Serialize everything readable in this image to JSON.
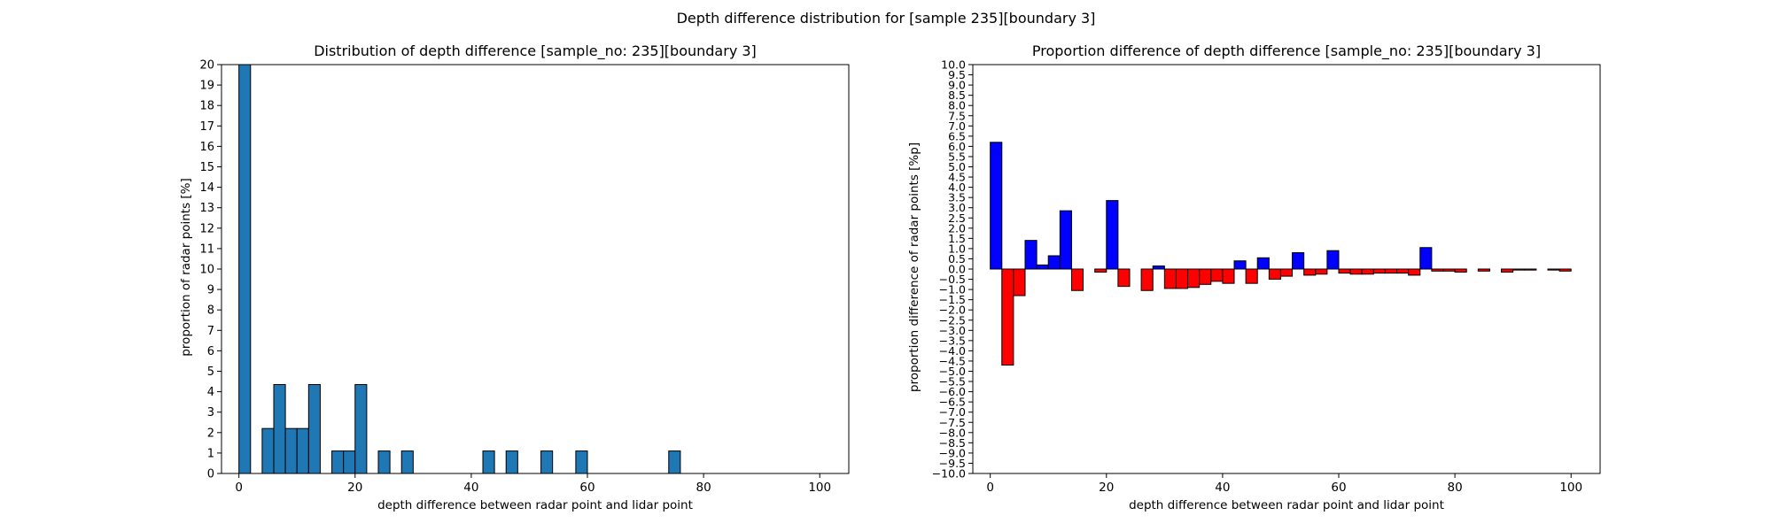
{
  "figure": {
    "suptitle": "Depth difference distribution for [sample 235][boundary 3]"
  },
  "chart_data": [
    {
      "type": "bar",
      "title": "Distribution of depth difference [sample_no: 235][boundary 3]",
      "xlabel": "depth difference between radar point and lidar point",
      "ylabel": "proportion of radar points [%]",
      "xlim": [
        -3,
        105
      ],
      "ylim": [
        0,
        20
      ],
      "xticks": [
        0,
        20,
        40,
        60,
        80,
        100
      ],
      "yticks": [
        0,
        1,
        2,
        3,
        4,
        5,
        6,
        7,
        8,
        9,
        10,
        11,
        12,
        13,
        14,
        15,
        16,
        17,
        18,
        19,
        20
      ],
      "bin_width": 2,
      "bar_color": "#1f77b4",
      "edge_color": "#000000",
      "bars": [
        {
          "x": 0,
          "value": 20.0
        },
        {
          "x": 4,
          "value": 2.2
        },
        {
          "x": 6,
          "value": 4.35
        },
        {
          "x": 8,
          "value": 2.2
        },
        {
          "x": 10,
          "value": 2.2
        },
        {
          "x": 12,
          "value": 4.35
        },
        {
          "x": 16,
          "value": 1.1
        },
        {
          "x": 18,
          "value": 1.1
        },
        {
          "x": 20,
          "value": 4.35
        },
        {
          "x": 24,
          "value": 1.1
        },
        {
          "x": 28,
          "value": 1.1
        },
        {
          "x": 42,
          "value": 1.1
        },
        {
          "x": 46,
          "value": 1.1
        },
        {
          "x": 52,
          "value": 1.1
        },
        {
          "x": 58,
          "value": 1.1
        },
        {
          "x": 74,
          "value": 1.1
        }
      ]
    },
    {
      "type": "bar",
      "title": "Proportion difference of depth difference [sample_no: 235][boundary 3]",
      "xlabel": "depth difference between radar point and lidar point",
      "ylabel": "proportion difference of radar points [%p]",
      "xlim": [
        -3,
        105
      ],
      "ylim": [
        -10,
        10
      ],
      "xticks": [
        0,
        20,
        40,
        60,
        80,
        100
      ],
      "yticks": [
        "−10.0",
        "−9.5",
        "−9.0",
        "−8.5",
        "−8.0",
        "−7.5",
        "−7.0",
        "−6.5",
        "−6.0",
        "−5.5",
        "−5.0",
        "−4.5",
        "−4.0",
        "−3.5",
        "−3.0",
        "−2.5",
        "−2.0",
        "−1.5",
        "−1.0",
        "−0.5",
        "0.0",
        "0.5",
        "1.0",
        "1.5",
        "2.0",
        "2.5",
        "3.0",
        "3.5",
        "4.0",
        "4.5",
        "5.0",
        "5.5",
        "6.0",
        "6.5",
        "7.0",
        "7.5",
        "8.0",
        "8.5",
        "9.0",
        "9.5",
        "10.0"
      ],
      "bin_width": 2,
      "positive_color": "#0000ff",
      "negative_color": "#ff0000",
      "edge_color": "#000000",
      "bars": [
        {
          "x": 0,
          "value": 6.2
        },
        {
          "x": 2,
          "value": -4.7
        },
        {
          "x": 4,
          "value": -1.3
        },
        {
          "x": 6,
          "value": 1.4
        },
        {
          "x": 8,
          "value": 0.2
        },
        {
          "x": 10,
          "value": 0.65
        },
        {
          "x": 12,
          "value": 2.85
        },
        {
          "x": 14,
          "value": -1.05
        },
        {
          "x": 18,
          "value": -0.15
        },
        {
          "x": 20,
          "value": 3.35
        },
        {
          "x": 22,
          "value": -0.85
        },
        {
          "x": 26,
          "value": -1.05
        },
        {
          "x": 28,
          "value": 0.15
        },
        {
          "x": 30,
          "value": -0.95
        },
        {
          "x": 32,
          "value": -0.95
        },
        {
          "x": 34,
          "value": -0.9
        },
        {
          "x": 36,
          "value": -0.75
        },
        {
          "x": 38,
          "value": -0.6
        },
        {
          "x": 40,
          "value": -0.7
        },
        {
          "x": 42,
          "value": 0.4
        },
        {
          "x": 44,
          "value": -0.7
        },
        {
          "x": 46,
          "value": 0.55
        },
        {
          "x": 48,
          "value": -0.5
        },
        {
          "x": 50,
          "value": -0.35
        },
        {
          "x": 52,
          "value": 0.8
        },
        {
          "x": 54,
          "value": -0.3
        },
        {
          "x": 56,
          "value": -0.25
        },
        {
          "x": 58,
          "value": 0.9
        },
        {
          "x": 60,
          "value": -0.2
        },
        {
          "x": 62,
          "value": -0.25
        },
        {
          "x": 64,
          "value": -0.25
        },
        {
          "x": 66,
          "value": -0.2
        },
        {
          "x": 68,
          "value": -0.2
        },
        {
          "x": 70,
          "value": -0.2
        },
        {
          "x": 72,
          "value": -0.3
        },
        {
          "x": 74,
          "value": 1.05
        },
        {
          "x": 76,
          "value": -0.1
        },
        {
          "x": 78,
          "value": -0.1
        },
        {
          "x": 80,
          "value": -0.15
        },
        {
          "x": 84,
          "value": -0.1
        },
        {
          "x": 88,
          "value": -0.15
        },
        {
          "x": 90,
          "value": -0.05
        },
        {
          "x": 92,
          "value": -0.05
        },
        {
          "x": 96,
          "value": -0.05
        },
        {
          "x": 98,
          "value": -0.1
        }
      ]
    }
  ]
}
